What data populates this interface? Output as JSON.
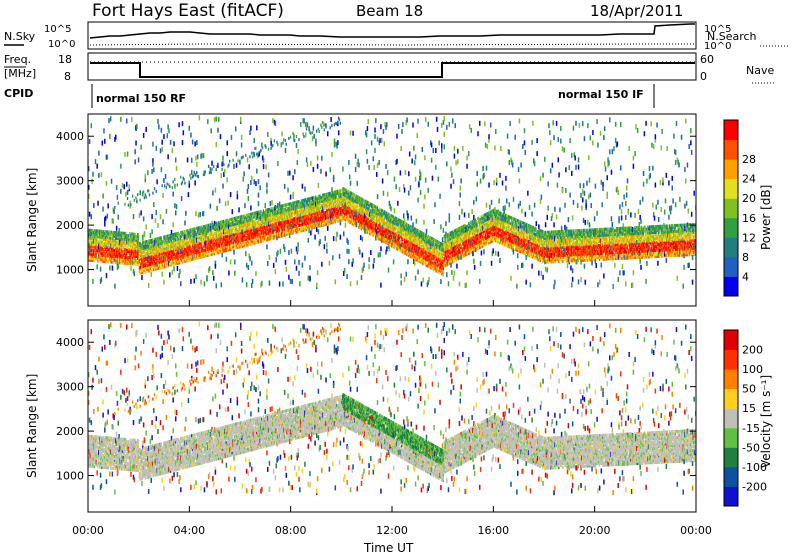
{
  "title": {
    "station": "Fort Hays East (fitACF)",
    "beam": "Beam 18",
    "date": "18/Apr/2011"
  },
  "header": {
    "nsky_label": "N.Sky",
    "nsearch_label": "N.Search",
    "noise_ticks": [
      "10^5",
      "10^0"
    ],
    "freq_label_1": "Freq.",
    "freq_label_2": "[MHz]",
    "freq_ticks": [
      "18",
      "8"
    ],
    "nave_label": "Nave",
    "nave_ticks": [
      "60",
      "0"
    ],
    "cpid_label": "CPID",
    "cpid_segments": [
      "normal 150 RF",
      "normal 150 IF"
    ]
  },
  "chart_data": [
    {
      "type": "heatmap",
      "name": "power",
      "ylabel": "Slant Range [km]",
      "y_ticks": [
        "1000",
        "2000",
        "3000",
        "4000"
      ],
      "ylim": [
        180,
        4500
      ],
      "colorbar_label": "Power [dB]",
      "colorbar_ticks": [
        "4",
        "8",
        "12",
        "16",
        "20",
        "24",
        "28"
      ],
      "colorbar_colors": [
        "#0000ee",
        "#2060c0",
        "#208080",
        "#30a040",
        "#80c020",
        "#e0e020",
        "#ffa000",
        "#ff5000",
        "#ff0000"
      ],
      "xlim_hours": [
        0,
        24
      ]
    },
    {
      "type": "heatmap",
      "name": "velocity",
      "ylabel": "Slant Range [km]",
      "y_ticks": [
        "1000",
        "2000",
        "3000",
        "4000"
      ],
      "ylim": [
        180,
        4500
      ],
      "colorbar_label": "Velocity [m s⁻¹]",
      "colorbar_ticks": [
        "200",
        "100",
        "50",
        "15",
        "-15",
        "-50",
        "-100",
        "-200"
      ],
      "colorbar_colors": [
        "#1010d0",
        "#1050a0",
        "#208040",
        "#60c040",
        "#c0c0b8",
        "#ffd020",
        "#ff8000",
        "#ff3000",
        "#e00000"
      ],
      "xlabel": "Time UT",
      "x_ticks": [
        "00:00",
        "04:00",
        "08:00",
        "12:00",
        "16:00",
        "20:00",
        "00:00"
      ],
      "xlim_hours": [
        0,
        24
      ]
    }
  ]
}
